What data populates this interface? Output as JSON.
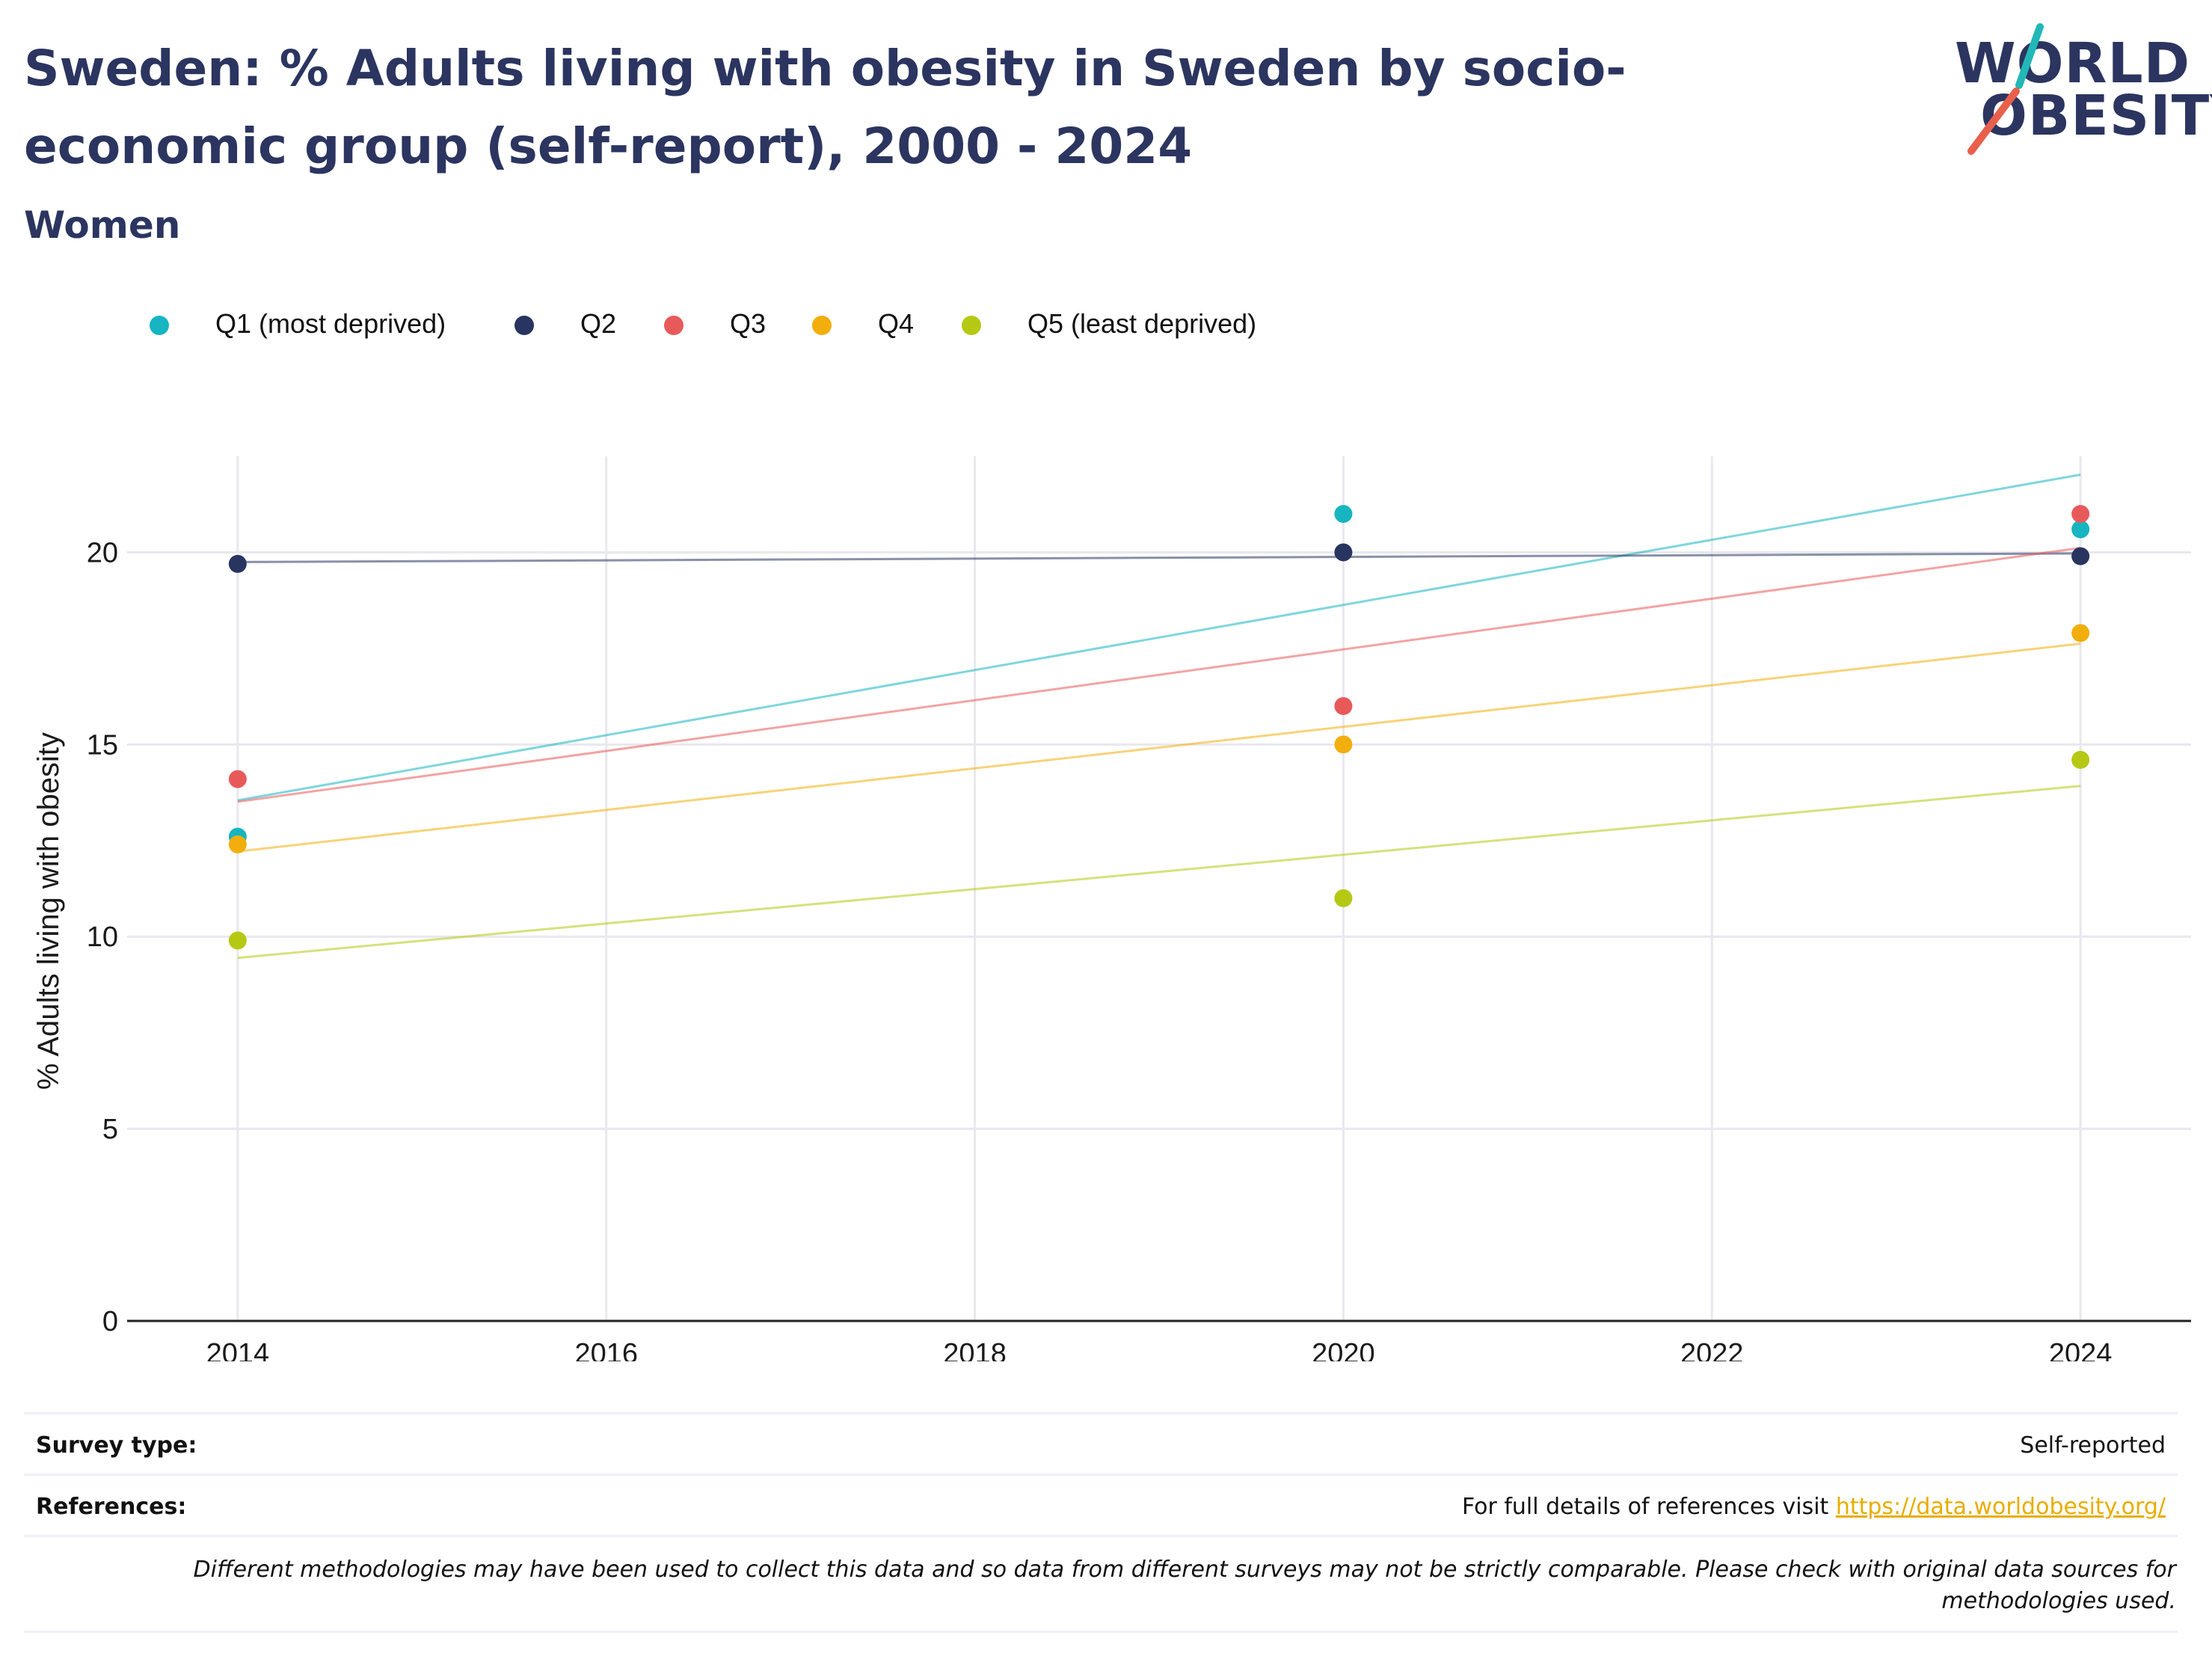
{
  "header": {
    "title": "Sweden: % Adults living with obesity in Sweden by socio-economic group (self-report), 2000 - 2024",
    "subtitle": "Women"
  },
  "logo": {
    "line1": "WORLD",
    "line2": "OBESITY",
    "slash_colors": [
      "#22b8b8",
      "#e8604c"
    ]
  },
  "chart_data": {
    "type": "scatter",
    "title": "Sweden: % Adults living with obesity in Sweden by socio-economic group (self-report), 2000 - 2024",
    "subtitle": "Women",
    "xlabel": "",
    "ylabel": "% Adults living with obesity",
    "x_ticks": [
      2014,
      2016,
      2018,
      2020,
      2022,
      2024
    ],
    "y_ticks": [
      0,
      5,
      10,
      15,
      20
    ],
    "xlim": [
      2013.4,
      2024.6
    ],
    "ylim": [
      0,
      22.5
    ],
    "grid": true,
    "legend_position": "top",
    "trendlines": true,
    "series": [
      {
        "name": "Q1 (most deprived)",
        "color": "#16b5c1",
        "x": [
          2014,
          2020,
          2024
        ],
        "y": [
          12.6,
          21.0,
          20.6
        ]
      },
      {
        "name": "Q2",
        "color": "#283560",
        "x": [
          2014,
          2020,
          2024
        ],
        "y": [
          19.7,
          20.0,
          19.9
        ]
      },
      {
        "name": "Q3",
        "color": "#e85a5a",
        "x": [
          2014,
          2020,
          2024
        ],
        "y": [
          14.1,
          16.0,
          21.0
        ]
      },
      {
        "name": "Q4",
        "color": "#f2ae0c",
        "x": [
          2014,
          2020,
          2024
        ],
        "y": [
          12.4,
          15.0,
          17.9
        ]
      },
      {
        "name": "Q5 (least deprived)",
        "color": "#b5c813",
        "x": [
          2014,
          2020,
          2024
        ],
        "y": [
          9.9,
          11.0,
          14.6
        ]
      }
    ]
  },
  "footer": {
    "survey_label": "Survey type:",
    "survey_value": "Self-reported",
    "references_label": "References:",
    "references_text": "For full details of references visit",
    "references_link": "https://data.worldobesity.org/",
    "note": "Different methodologies may have been used to collect this data and so data from different surveys may not be strictly comparable. Please check with original data sources for methodologies used."
  }
}
